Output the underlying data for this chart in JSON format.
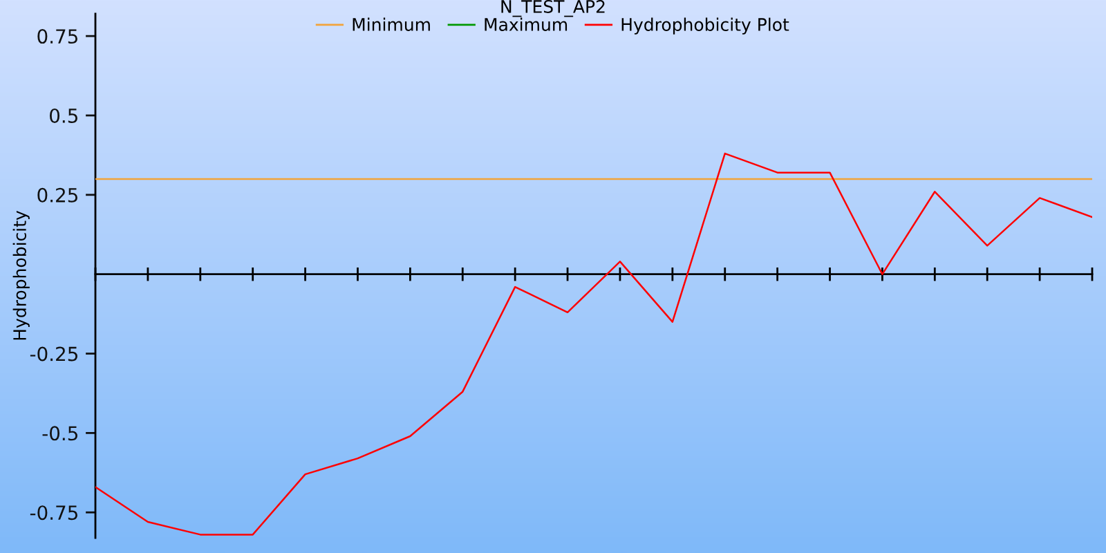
{
  "chart_data": {
    "type": "line",
    "title": "N_TEST_AP2",
    "ylabel": "Hydrophobicity",
    "categories": [
      null,
      null,
      null,
      null,
      null,
      null,
      null,
      null,
      null,
      null,
      null,
      null,
      null,
      null,
      null,
      null,
      null,
      null,
      null,
      null
    ],
    "series": [
      {
        "name": "Minimum",
        "color": "#f2a33a",
        "values": [
          0.3,
          0.3,
          0.3,
          0.3,
          0.3,
          0.3,
          0.3,
          0.3,
          0.3,
          0.3,
          0.3,
          0.3,
          0.3,
          0.3,
          0.3,
          0.3,
          0.3,
          0.3,
          0.3,
          0.3
        ]
      },
      {
        "name": "Maximum",
        "color": "#009900",
        "values": [
          null,
          null,
          null,
          null,
          null,
          null,
          null,
          null,
          null,
          null,
          null,
          null,
          null,
          null,
          null,
          null,
          null,
          null,
          null,
          null
        ]
      },
      {
        "name": "Hydrophobicity Plot",
        "color": "#ff0000",
        "values": [
          -0.67,
          -0.78,
          -0.82,
          -0.82,
          -0.63,
          -0.58,
          -0.51,
          -0.37,
          -0.04,
          -0.12,
          0.04,
          -0.15,
          0.38,
          0.32,
          0.32,
          0.0,
          0.26,
          0.09,
          0.24,
          0.18
        ]
      }
    ],
    "ylim": [
      -0.83,
      0.82
    ],
    "yticks": [
      -0.75,
      -0.5,
      -0.25,
      0.25,
      0.5,
      0.75
    ],
    "legend": "top"
  }
}
